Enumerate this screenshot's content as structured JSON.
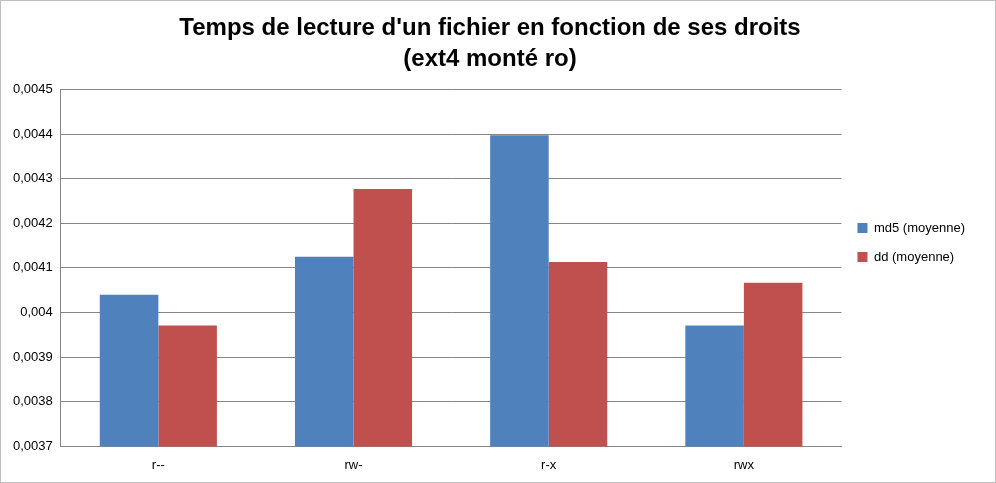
{
  "chart_data": {
    "type": "bar",
    "title": [
      "Temps de lecture d'un fichier en fonction de ses droits",
      "(ext4 monté ro)"
    ],
    "categories": [
      "r--",
      "rw-",
      "r-x",
      "rwx"
    ],
    "series": [
      {
        "name": "md5 (moyenne)",
        "color": "#4f81bd",
        "values": [
          0.00404,
          0.004125,
          0.004397,
          0.003971
        ]
      },
      {
        "name": "dd (moyenne)",
        "color": "#c0504d",
        "values": [
          0.003971,
          0.004277,
          0.004113,
          0.004067
        ]
      }
    ],
    "ylim": [
      0.0037,
      0.0045
    ],
    "yticks": [
      {
        "value": 0.0037,
        "label": "0,0037"
      },
      {
        "value": 0.0038,
        "label": "0,0038"
      },
      {
        "value": 0.0039,
        "label": "0,0039"
      },
      {
        "value": 0.004,
        "label": "0,004"
      },
      {
        "value": 0.0041,
        "label": "0,0041"
      },
      {
        "value": 0.0042,
        "label": "0,0042"
      },
      {
        "value": 0.0043,
        "label": "0,0043"
      },
      {
        "value": 0.0044,
        "label": "0,0044"
      },
      {
        "value": 0.0045,
        "label": "0,0045"
      }
    ],
    "grid": true,
    "legend": "right"
  }
}
